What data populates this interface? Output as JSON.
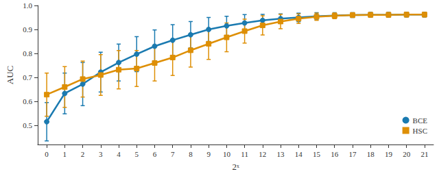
{
  "chart_data": {
    "type": "line",
    "x_label": "2ˣ",
    "y_label": "AUC",
    "categories": [
      "0",
      "1",
      "2",
      "3",
      "4",
      "5",
      "6",
      "7",
      "8",
      "9",
      "10",
      "11",
      "12",
      "13",
      "14",
      "15",
      "16",
      "17",
      "18",
      "19",
      "20",
      "21"
    ],
    "ylim": [
      0.42,
      1.0
    ],
    "yticks": [
      0.5,
      0.6,
      0.7,
      0.8,
      0.9,
      {
        "value": 1.0,
        "label": "1.0"
      }
    ],
    "grid": false,
    "legend": "lower right",
    "series": [
      {
        "name": "BCE",
        "color": "#1a7ab0",
        "marker": "circle",
        "line_style": "solid",
        "values": [
          0.515,
          0.633,
          0.672,
          0.722,
          0.762,
          0.797,
          0.83,
          0.855,
          0.878,
          0.9,
          0.915,
          0.927,
          0.938,
          0.945,
          0.95,
          0.955,
          0.958,
          0.96,
          0.961,
          0.961,
          0.962,
          0.962
        ],
        "errors": [
          0.08,
          0.085,
          0.09,
          0.083,
          0.077,
          0.073,
          0.068,
          0.065,
          0.055,
          0.05,
          0.04,
          0.035,
          0.025,
          0.02,
          0.018,
          0.015,
          0.012,
          0.01,
          0.01,
          0.01,
          0.01,
          0.01
        ]
      },
      {
        "name": "HSC",
        "color": "#de8f05",
        "marker": "square",
        "line_style": "solid",
        "values": [
          0.628,
          0.66,
          0.693,
          0.71,
          0.732,
          0.737,
          0.76,
          0.783,
          0.813,
          0.84,
          0.867,
          0.893,
          0.917,
          0.933,
          0.945,
          0.953,
          0.957,
          0.96,
          0.961,
          0.961,
          0.962,
          0.962
        ],
        "errors": [
          0.09,
          0.085,
          0.075,
          0.085,
          0.08,
          0.075,
          0.075,
          0.075,
          0.07,
          0.065,
          0.06,
          0.05,
          0.04,
          0.03,
          0.02,
          0.015,
          0.012,
          0.01,
          0.01,
          0.01,
          0.01,
          0.01
        ]
      }
    ]
  }
}
